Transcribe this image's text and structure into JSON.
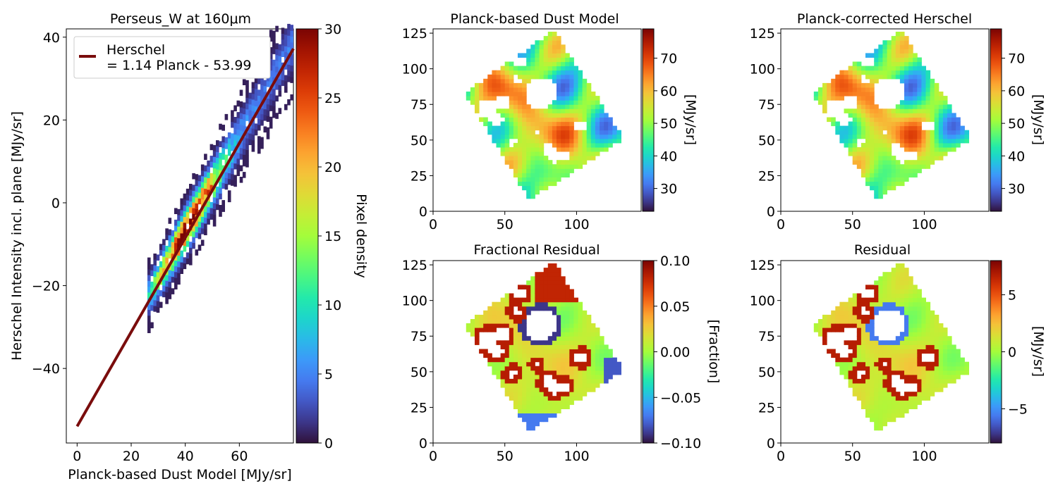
{
  "figure": {
    "panels": [
      {
        "id": "scatter",
        "title": "Perseus_W at 160μm"
      },
      {
        "id": "model",
        "title": "Planck-based Dust Model"
      },
      {
        "id": "corrected",
        "title": "Planck-corrected Herschel"
      },
      {
        "id": "fracres",
        "title": "Fractional Residual"
      },
      {
        "id": "residual",
        "title": "Residual"
      }
    ]
  },
  "colors": {
    "fit_line": "#7a0c0c",
    "turbo": [
      "#30123b",
      "#4145ab",
      "#4675ed",
      "#39a2fc",
      "#1bcfd4",
      "#24eca6",
      "#61fc6c",
      "#a4fc3b",
      "#d1e834",
      "#f3c63a",
      "#fe9b2d",
      "#f36315",
      "#d93806",
      "#b11901",
      "#7a0403"
    ]
  },
  "chart_data": [
    {
      "type": "heatmap",
      "subtype": "2d-histogram",
      "title": "Perseus_W at 160μm",
      "xlabel": "Planck-based Dust Model [MJy/sr]",
      "ylabel": "Herschel Intensity incl. plane [MJy/sr]",
      "xlim": [
        -4,
        80
      ],
      "ylim": [
        -58,
        42
      ],
      "xticks": [
        0,
        20,
        40,
        60
      ],
      "yticks": [
        -40,
        -20,
        0,
        20,
        40
      ],
      "fit": {
        "label_line1": "Herschel",
        "label_line2": "= 1.14 Planck - 53.99",
        "slope": 1.14,
        "intercept": -53.99,
        "x_range": [
          0,
          80
        ]
      },
      "density_range": [
        0,
        30
      ],
      "colorbar": {
        "label": "Pixel density",
        "ticks": [
          0,
          5,
          10,
          15,
          20,
          25,
          30
        ]
      },
      "legend": "upper-left"
    },
    {
      "type": "heatmap",
      "title": "Planck-based Dust Model",
      "xticks": [
        0,
        50,
        100
      ],
      "yticks": [
        0,
        25,
        50,
        75,
        100,
        125
      ],
      "xlim": [
        0,
        145
      ],
      "ylim": [
        0,
        128
      ],
      "value_range": [
        23,
        79
      ],
      "colorbar": {
        "label": "[MJy/sr]",
        "ticks": [
          30,
          40,
          50,
          60,
          70
        ]
      }
    },
    {
      "type": "heatmap",
      "title": "Planck-corrected Herschel",
      "xticks": [
        0,
        50,
        100
      ],
      "yticks": [
        0,
        25,
        50,
        75,
        100,
        125
      ],
      "xlim": [
        0,
        145
      ],
      "ylim": [
        0,
        128
      ],
      "value_range": [
        23,
        79
      ],
      "colorbar": {
        "label": "[MJy/sr]",
        "ticks": [
          30,
          40,
          50,
          60,
          70
        ]
      }
    },
    {
      "type": "heatmap",
      "title": "Fractional Residual",
      "xticks": [
        0,
        50,
        100
      ],
      "yticks": [
        0,
        25,
        50,
        75,
        100,
        125
      ],
      "xlim": [
        0,
        145
      ],
      "ylim": [
        0,
        128
      ],
      "value_range": [
        -0.1,
        0.1
      ],
      "colorbar": {
        "label": "[Fraction]",
        "ticks": [
          "−0.10",
          "−0.05",
          "0.00",
          "0.05",
          "0.10"
        ],
        "tick_values": [
          -0.1,
          -0.05,
          0,
          0.05,
          0.1
        ]
      }
    },
    {
      "type": "heatmap",
      "title": "Residual",
      "xticks": [
        0,
        50,
        100
      ],
      "yticks": [
        0,
        25,
        50,
        75,
        100,
        125
      ],
      "xlim": [
        0,
        145
      ],
      "ylim": [
        0,
        128
      ],
      "value_range": [
        -8,
        8
      ],
      "colorbar": {
        "label": "[MJy/sr]",
        "ticks": [
          "−5",
          "0",
          "5"
        ],
        "tick_values": [
          -5,
          0,
          5
        ]
      }
    }
  ],
  "map_footprint": {
    "corners_data": [
      [
        22,
        83
      ],
      [
        67,
        8
      ],
      [
        133,
        51
      ],
      [
        84,
        127
      ]
    ],
    "holes": [
      {
        "cx": 75,
        "cy": 83,
        "r": 11
      },
      {
        "cx": 38,
        "cy": 72,
        "r": 7
      },
      {
        "cx": 48,
        "cy": 76,
        "r": 5
      },
      {
        "cx": 44,
        "cy": 65,
        "r": 5
      },
      {
        "cx": 60,
        "cy": 105,
        "r": 4
      },
      {
        "cx": 58,
        "cy": 92,
        "r": 3
      },
      {
        "cx": 103,
        "cy": 60,
        "r": 4
      },
      {
        "cx": 85,
        "cy": 39,
        "r": 5
      },
      {
        "cx": 80,
        "cy": 43,
        "r": 4
      },
      {
        "cx": 92,
        "cy": 40,
        "r": 3
      },
      {
        "cx": 55,
        "cy": 49,
        "r": 3
      },
      {
        "cx": 72,
        "cy": 55,
        "r": 2
      }
    ]
  }
}
